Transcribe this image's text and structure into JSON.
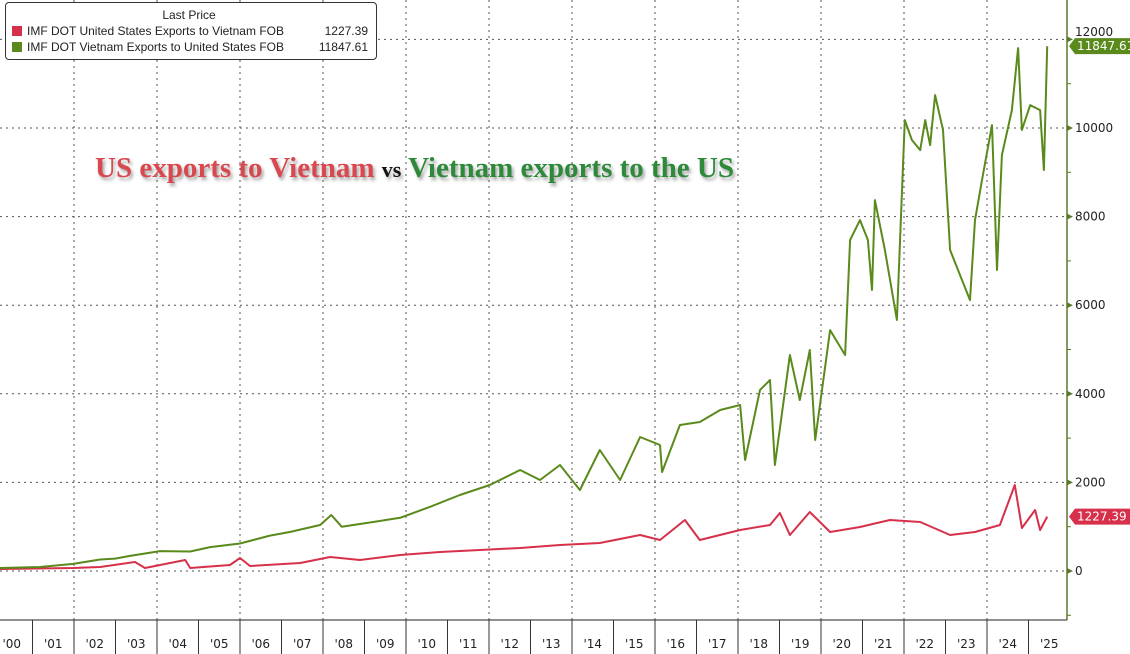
{
  "chart_data": {
    "type": "line",
    "title": "",
    "annotation": {
      "part1": "US exports to Vietnam",
      "vs": "vs",
      "part2": "Vietnam exports to the US"
    },
    "legend": {
      "title": "Last Price",
      "placement": "top-left"
    },
    "xlabel": "",
    "ylabel": "",
    "x_tick_labels": [
      "'00",
      "'01",
      "'02",
      "'03",
      "'04",
      "'05",
      "'06",
      "'07",
      "'08",
      "'09",
      "'10",
      "'11",
      "'12",
      "'13",
      "'14",
      "'15",
      "'16",
      "'17",
      "'18",
      "'19",
      "'20",
      "'21",
      "'22",
      "'23",
      "'24",
      "'25"
    ],
    "y_ticks": [
      0,
      2000,
      4000,
      6000,
      8000,
      10000,
      12000
    ],
    "y_tick_labels": [
      "0",
      "2000",
      "4000",
      "6000",
      "8000",
      "10000",
      "12000"
    ],
    "ylim": [
      -1100,
      12900
    ],
    "xlim": [
      2000.0,
      2025.9
    ],
    "y_axis_side": "right",
    "grid": true,
    "series": [
      {
        "name": "IMF DOT United States Exports to Vietnam FOB",
        "last_value": "1227.39",
        "color": "#d6304a",
        "points": [
          [
            2000.2,
            45
          ],
          [
            2001.98,
            68
          ],
          [
            2002.63,
            90
          ],
          [
            2003.47,
            203
          ],
          [
            2003.71,
            68
          ],
          [
            2004.68,
            248
          ],
          [
            2004.8,
            68
          ],
          [
            2005.76,
            135
          ],
          [
            2006.0,
            293
          ],
          [
            2006.24,
            113
          ],
          [
            2007.45,
            181
          ],
          [
            2008.17,
            316
          ],
          [
            2008.89,
            248
          ],
          [
            2009.86,
            361
          ],
          [
            2010.82,
            429
          ],
          [
            2011.78,
            474
          ],
          [
            2012.75,
            519
          ],
          [
            2013.71,
            587
          ],
          [
            2014.67,
            632
          ],
          [
            2015.64,
            812
          ],
          [
            2016.12,
            700
          ],
          [
            2016.72,
            1151
          ],
          [
            2017.08,
            700
          ],
          [
            2018.05,
            925
          ],
          [
            2018.77,
            1038
          ],
          [
            2019.01,
            1309
          ],
          [
            2019.25,
            812
          ],
          [
            2019.73,
            1332
          ],
          [
            2020.22,
            880
          ],
          [
            2020.94,
            993
          ],
          [
            2021.66,
            1151
          ],
          [
            2022.39,
            1106
          ],
          [
            2023.11,
            812
          ],
          [
            2023.71,
            880
          ],
          [
            2024.31,
            1038
          ],
          [
            2024.67,
            1941
          ],
          [
            2024.84,
            970
          ],
          [
            2025.16,
            1377
          ],
          [
            2025.28,
            925
          ],
          [
            2025.45,
            1227.39
          ]
        ]
      },
      {
        "name": "IMF DOT Vietnam Exports to United States FOB",
        "last_value": "11847.61",
        "color": "#5a8a1c",
        "points": [
          [
            2000.2,
            68
          ],
          [
            2001.18,
            90
          ],
          [
            2001.98,
            160
          ],
          [
            2002.63,
            260
          ],
          [
            2002.99,
            280
          ],
          [
            2003.35,
            340
          ],
          [
            2004.07,
            450
          ],
          [
            2004.8,
            440
          ],
          [
            2005.28,
            540
          ],
          [
            2006.0,
            620
          ],
          [
            2006.72,
            800
          ],
          [
            2007.2,
            880
          ],
          [
            2007.93,
            1038
          ],
          [
            2008.2,
            1264
          ],
          [
            2008.45,
            1000
          ],
          [
            2008.89,
            1060
          ],
          [
            2009.86,
            1200
          ],
          [
            2010.58,
            1450
          ],
          [
            2011.3,
            1715
          ],
          [
            2012.02,
            1941
          ],
          [
            2012.75,
            2280
          ],
          [
            2013.23,
            2054
          ],
          [
            2013.71,
            2392
          ],
          [
            2014.19,
            1828
          ],
          [
            2014.67,
            2731
          ],
          [
            2015.16,
            2054
          ],
          [
            2015.64,
            3024
          ],
          [
            2016.12,
            2844
          ],
          [
            2016.17,
            2234
          ],
          [
            2016.6,
            3295
          ],
          [
            2017.08,
            3363
          ],
          [
            2017.57,
            3634
          ],
          [
            2018.05,
            3747
          ],
          [
            2018.17,
            2505
          ],
          [
            2018.53,
            4085
          ],
          [
            2018.77,
            4311
          ],
          [
            2018.89,
            2392
          ],
          [
            2019.25,
            4875
          ],
          [
            2019.49,
            3859
          ],
          [
            2019.73,
            4988
          ],
          [
            2019.86,
            2957
          ],
          [
            2020.22,
            5439
          ],
          [
            2020.58,
            4875
          ],
          [
            2020.7,
            7471
          ],
          [
            2020.94,
            7922
          ],
          [
            2021.13,
            7471
          ],
          [
            2021.23,
            6342
          ],
          [
            2021.3,
            8373
          ],
          [
            2021.54,
            7245
          ],
          [
            2021.83,
            5665
          ],
          [
            2022.02,
            10179
          ],
          [
            2022.19,
            9728
          ],
          [
            2022.39,
            9502
          ],
          [
            2022.51,
            10179
          ],
          [
            2022.63,
            9615
          ],
          [
            2022.75,
            10743
          ],
          [
            2022.94,
            9954
          ],
          [
            2023.11,
            7245
          ],
          [
            2023.35,
            6681
          ],
          [
            2023.59,
            6116
          ],
          [
            2023.71,
            7922
          ],
          [
            2023.9,
            8938
          ],
          [
            2024.12,
            10066
          ],
          [
            2024.24,
            6794
          ],
          [
            2024.36,
            9389
          ],
          [
            2024.6,
            10405
          ],
          [
            2024.75,
            11804
          ],
          [
            2024.84,
            9954
          ],
          [
            2025.04,
            10518
          ],
          [
            2025.28,
            10405
          ],
          [
            2025.37,
            9051
          ],
          [
            2025.45,
            11847.61
          ]
        ]
      }
    ]
  }
}
